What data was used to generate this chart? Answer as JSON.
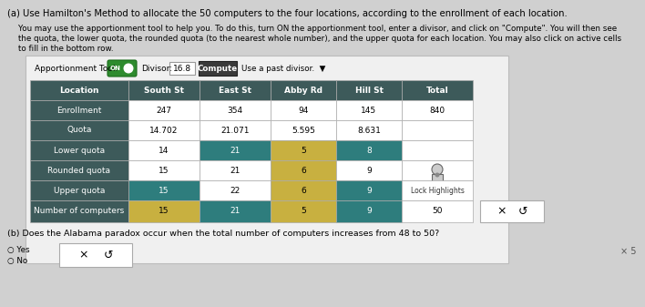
{
  "title_a": "(a) Use Hamilton's Method to allocate the 50 computers to the four locations, according to the enrollment of each location.",
  "body_line1": "You may use the apportionment tool to help you. To do this, turn ON the apportionment tool, enter a divisor, and click on \"Compute\". You will then see",
  "body_line2": "the quota, the lower quota, the rounded quota (to the nearest whole number), and the upper quota for each location. You may also click on active cells",
  "body_line3": "to fill in the bottom row.",
  "tool_label": "Apportionment Tool:",
  "divisor_label": "Divisor:",
  "divisor_value": "16.8",
  "compute_label": "Compute",
  "use_past_label": "Use a past divisor.",
  "table_data": [
    [
      "Location",
      "South St",
      "East St",
      "Abby Rd",
      "Hill St",
      "Total"
    ],
    [
      "Enrollment",
      "247",
      "354",
      "94",
      "145",
      "840"
    ],
    [
      "Quota",
      "14.702",
      "21.071",
      "5.595",
      "8.631",
      ""
    ],
    [
      "Lower quota",
      "14",
      "21",
      "5",
      "8",
      ""
    ],
    [
      "Rounded quota",
      "15",
      "21",
      "6",
      "9",
      "lock"
    ],
    [
      "Upper quota",
      "15",
      "22",
      "6",
      "9",
      "Lock Highlights"
    ],
    [
      "Number of computers",
      "15",
      "21",
      "5",
      "9",
      "50"
    ]
  ],
  "header_bg": "#3d5a5a",
  "header_fg": "#ffffff",
  "teal_bg": "#2e7d7d",
  "teal_fg": "#ffffff",
  "yellow_bg": "#c8b040",
  "yellow_fg": "#000000",
  "white_bg": "#ffffff",
  "white_fg": "#000000",
  "gray_bg": "#d8d8d8",
  "part_b_text": "(b) Does the Alabama paradox occur when the total number of computers increases from 48 to 50?",
  "bg_color": "#d0d0d0"
}
